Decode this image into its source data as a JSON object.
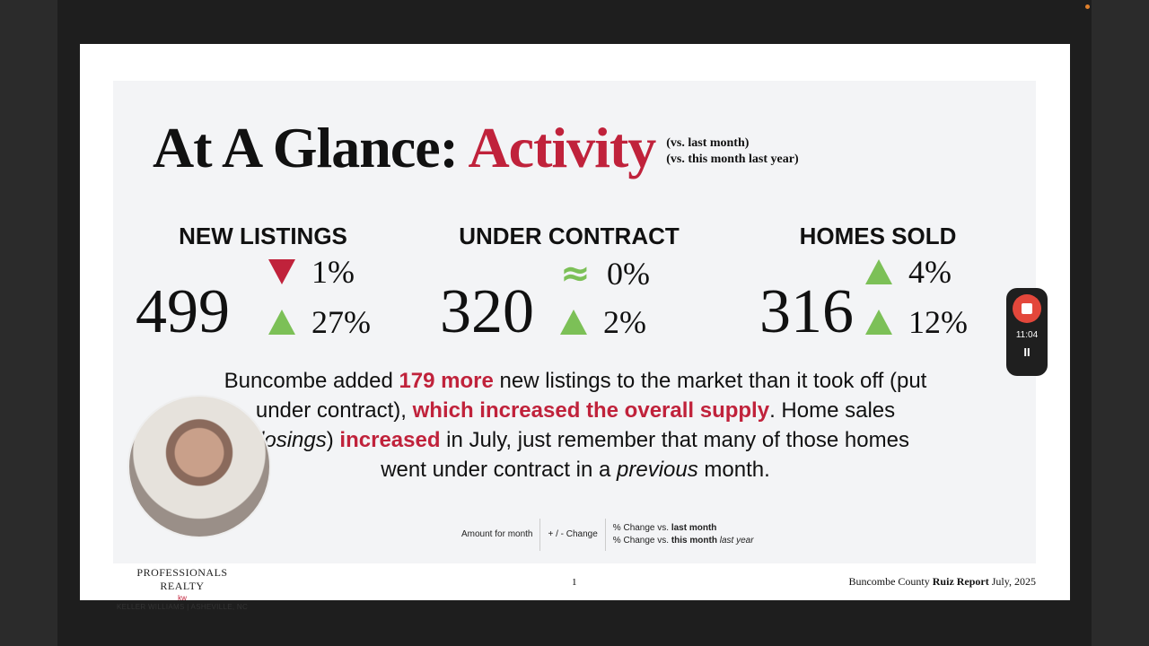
{
  "slide": {
    "title_prefix": "At A Glance: ",
    "title_accent": "Activity",
    "sub1": "(vs. last month)",
    "sub2": "(vs. this month last year)",
    "metrics": [
      {
        "label": "NEW LISTINGS",
        "value": "499",
        "month_change": "1%",
        "month_dir": "down",
        "year_change": "27%",
        "year_dir": "up"
      },
      {
        "label": "UNDER CONTRACT",
        "value": "320",
        "month_change": "0%",
        "month_dir": "flat",
        "month_symbol": "≈",
        "year_change": "2%",
        "year_dir": "up"
      },
      {
        "label": "HOMES SOLD",
        "value": "316",
        "month_change": "4%",
        "month_dir": "up",
        "year_change": "12%",
        "year_dir": "up"
      }
    ],
    "body": {
      "t1": "Buncombe added ",
      "h1": "179 more",
      "t2": " new listings to the market than it took off (put under contract), ",
      "h2": "which increased the overall supply",
      "t3": ". Home sales (",
      "i1": "closings",
      "t4": ") ",
      "h3": "increased",
      "t5": " in July, just remember that many of those homes went under contract in a ",
      "i2": "previous",
      "t6": " month."
    },
    "legend": {
      "amount": "Amount for month",
      "change": "+ / - Change",
      "l1a": "% Change vs. ",
      "l1b": "last month",
      "l2a": "% Change vs. ",
      "l2b": "this month",
      "l2c": " last year"
    },
    "logo": {
      "name": "PROFESSIONALS REALTY",
      "kw": "kw",
      "sub": "KELLER WILLIAMS | ASHEVILLE, NC"
    },
    "page_number": "1",
    "footer": {
      "a": "Buncombe County ",
      "b": "Ruiz Report",
      "c": " July, 2025"
    }
  },
  "recorder": {
    "time": "11:04",
    "pause": "II"
  }
}
